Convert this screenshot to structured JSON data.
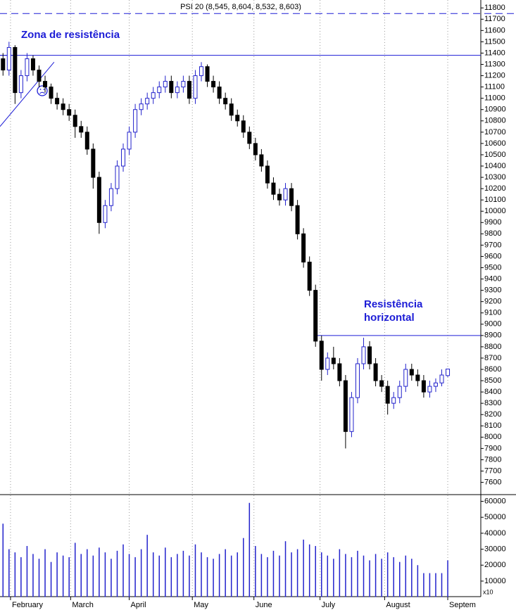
{
  "chart_data": {
    "type": "candlestick",
    "title": "PSI 20 (8,545, 8,604, 8,532, 8,603)",
    "annotations": [
      {
        "lines": [
          "Zona de resistência"
        ]
      },
      {
        "lines": [
          "Resistência",
          "horizontal"
        ]
      }
    ],
    "resistance_levels": [
      11380,
      8900
    ],
    "dashed_level": 11750,
    "trendline": {
      "x": [
        -0.5,
        8.5
      ],
      "values": [
        10750,
        11320
      ]
    },
    "xlim": [
      -0.5,
      79.5
    ],
    "xticks": [
      {
        "value": 1.25,
        "label": "February"
      },
      {
        "value": 11.25,
        "label": "March"
      },
      {
        "value": 21,
        "label": "April"
      },
      {
        "value": 31.5,
        "label": "May"
      },
      {
        "value": 41.75,
        "label": "June"
      },
      {
        "value": 52.75,
        "label": "July"
      },
      {
        "value": 63.5,
        "label": "August"
      },
      {
        "value": 74,
        "label": "Septem"
      }
    ],
    "ylim": [
      7510,
      11870
    ],
    "yticks": [
      7600,
      7700,
      7800,
      7900,
      8000,
      8100,
      8200,
      8300,
      8400,
      8500,
      8600,
      8700,
      8800,
      8900,
      9000,
      9100,
      9200,
      9300,
      9400,
      9500,
      9600,
      9700,
      9800,
      9900,
      10000,
      10100,
      10200,
      10300,
      10400,
      10500,
      10600,
      10700,
      10800,
      10900,
      11000,
      11100,
      11200,
      11300,
      11400,
      11500,
      11600,
      11700,
      11800
    ],
    "open": [
      11350,
      11250,
      11450,
      11050,
      11200,
      11350,
      11250,
      11150,
      11100,
      11000,
      10950,
      10900,
      10850,
      10750,
      10700,
      10550,
      10300,
      9900,
      10050,
      10200,
      10400,
      10550,
      10700,
      10900,
      10950,
      11000,
      11050,
      11100,
      11150,
      11050,
      11100,
      11150,
      11000,
      11200,
      11280,
      11150,
      11100,
      11000,
      10950,
      10850,
      10800,
      10700,
      10600,
      10500,
      10400,
      10250,
      10150,
      10100,
      10200,
      10050,
      9800,
      9550,
      9300,
      8850,
      8600,
      8700,
      8650,
      8500,
      8050,
      8350,
      8650,
      8800,
      8650,
      8500,
      8450,
      8300,
      8350,
      8450,
      8600,
      8550,
      8500,
      8400,
      8450,
      8480,
      8545
    ],
    "high": [
      11400,
      11500,
      11470,
      11250,
      11400,
      11380,
      11290,
      11200,
      11130,
      11050,
      11000,
      10950,
      10900,
      10800,
      10750,
      10600,
      10350,
      10100,
      10250,
      10450,
      10600,
      10750,
      10950,
      11000,
      11050,
      11100,
      11150,
      11200,
      11200,
      11150,
      11200,
      11200,
      11250,
      11320,
      11300,
      11200,
      11150,
      11050,
      11000,
      10900,
      10850,
      10750,
      10650,
      10550,
      10450,
      10300,
      10200,
      10250,
      10250,
      10100,
      9850,
      9600,
      9350,
      8900,
      8750,
      8800,
      8700,
      8550,
      8400,
      8700,
      8880,
      8850,
      8700,
      8550,
      8500,
      8400,
      8500,
      8650,
      8650,
      8600,
      8550,
      8500,
      8520,
      8600,
      8604
    ],
    "low": [
      11200,
      11200,
      10950,
      11000,
      11150,
      11200,
      11100,
      11050,
      10950,
      10900,
      10850,
      10800,
      10650,
      10650,
      10500,
      10200,
      9800,
      9850,
      10000,
      10150,
      10350,
      10500,
      10650,
      10850,
      10900,
      10950,
      11000,
      11050,
      11000,
      11000,
      11050,
      10950,
      10950,
      11150,
      11100,
      11050,
      10950,
      10900,
      10800,
      10750,
      10650,
      10550,
      10450,
      10350,
      10200,
      10100,
      10050,
      10050,
      10000,
      9750,
      9500,
      9250,
      8800,
      8500,
      8550,
      8600,
      8450,
      7900,
      8000,
      8300,
      8600,
      8600,
      8450,
      8400,
      8200,
      8250,
      8300,
      8400,
      8500,
      8450,
      8350,
      8350,
      8400,
      8450,
      8532
    ],
    "close": [
      11250,
      11450,
      11050,
      11200,
      11350,
      11250,
      11150,
      11100,
      11000,
      10950,
      10900,
      10850,
      10750,
      10700,
      10550,
      10300,
      9900,
      10050,
      10200,
      10400,
      10550,
      10700,
      10900,
      10950,
      11000,
      11050,
      11100,
      11150,
      11050,
      11100,
      11150,
      11000,
      11200,
      11280,
      11150,
      11100,
      11000,
      10950,
      10850,
      10800,
      10700,
      10600,
      10500,
      10400,
      10250,
      10150,
      10100,
      10200,
      10050,
      9800,
      9550,
      9300,
      8850,
      8600,
      8700,
      8650,
      8500,
      8050,
      8350,
      8650,
      8800,
      8650,
      8500,
      8450,
      8300,
      8350,
      8450,
      8600,
      8550,
      8500,
      8400,
      8450,
      8480,
      8550,
      8603
    ],
    "volume": [
      46000,
      30000,
      28000,
      25000,
      32000,
      27000,
      24000,
      30000,
      22000,
      28000,
      26000,
      25000,
      34000,
      27000,
      30000,
      26000,
      31000,
      28000,
      24000,
      29000,
      33000,
      27000,
      25000,
      30000,
      39000,
      28000,
      26000,
      31000,
      25000,
      27000,
      29000,
      26000,
      33000,
      28000,
      25000,
      24000,
      27000,
      30000,
      26000,
      28000,
      37000,
      59000,
      32000,
      27000,
      25000,
      29000,
      26000,
      35000,
      28000,
      30000,
      36000,
      33000,
      32000,
      28000,
      26000,
      24000,
      30000,
      27000,
      25000,
      29000,
      26000,
      23000,
      27000,
      24000,
      28000,
      25000,
      22000,
      26000,
      24000,
      20000,
      15000,
      15000,
      15000,
      15000,
      23000
    ],
    "volume_unit": "x10",
    "vlim": [
      0,
      62000
    ],
    "vticks": [
      10000,
      20000,
      30000,
      40000,
      50000,
      60000
    ],
    "up_color": "#2222cc",
    "down_color": "#000000",
    "volume_color": "#2222cc"
  }
}
